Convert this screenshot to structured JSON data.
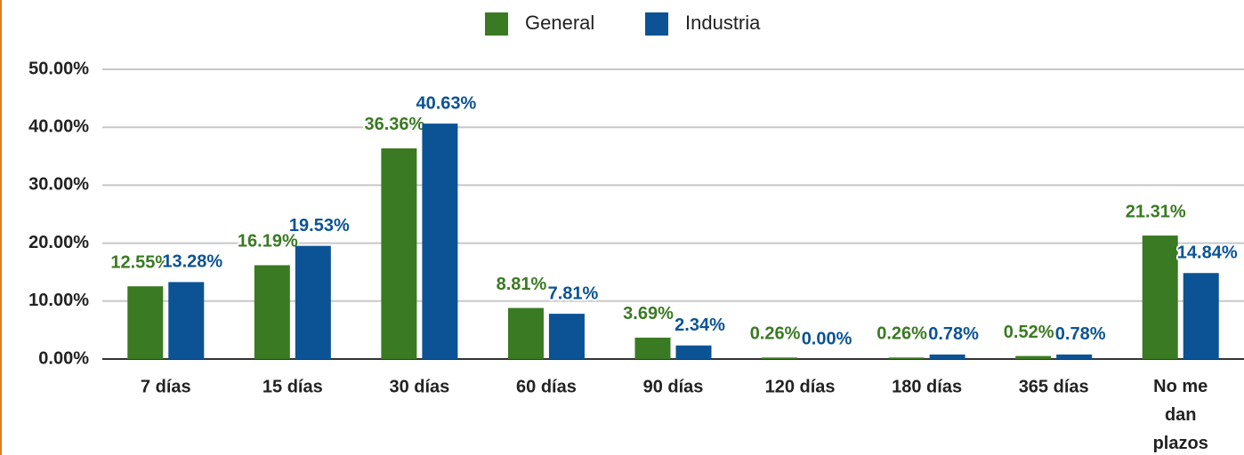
{
  "chart_data": {
    "type": "bar",
    "categories": [
      "7 días",
      "15 días",
      "30 días",
      "60 días",
      "90 días",
      "120 días",
      "180 días",
      "365 días",
      "No me dan plazos"
    ],
    "series": [
      {
        "name": "General",
        "color": "#3a7a22",
        "values": [
          12.55,
          16.19,
          36.36,
          8.81,
          3.69,
          0.26,
          0.26,
          0.52,
          21.31
        ],
        "value_labels": [
          "12.55%",
          "16.19%",
          "36.36%",
          "8.81%",
          "3.69%",
          "0.26%",
          "0.26%",
          "0.52%",
          "21.31%"
        ]
      },
      {
        "name": "Industria",
        "color": "#0b5394",
        "values": [
          13.28,
          19.53,
          40.63,
          7.81,
          2.34,
          0.0,
          0.78,
          0.78,
          14.84
        ],
        "value_labels": [
          "13.28%",
          "19.53%",
          "40.63%",
          "7.81%",
          "2.34%",
          "0.00%",
          "0.78%",
          "0.78%",
          "14.84%"
        ]
      }
    ],
    "ylim": [
      0,
      50
    ],
    "yticks": [
      {
        "value": 0,
        "label": "0.00%"
      },
      {
        "value": 10,
        "label": "10.00%"
      },
      {
        "value": 20,
        "label": "20.00%"
      },
      {
        "value": 30,
        "label": "30.00%"
      },
      {
        "value": 40,
        "label": "40.00%"
      },
      {
        "value": 50,
        "label": "50.00%"
      }
    ],
    "grid": true,
    "legend": "top"
  }
}
